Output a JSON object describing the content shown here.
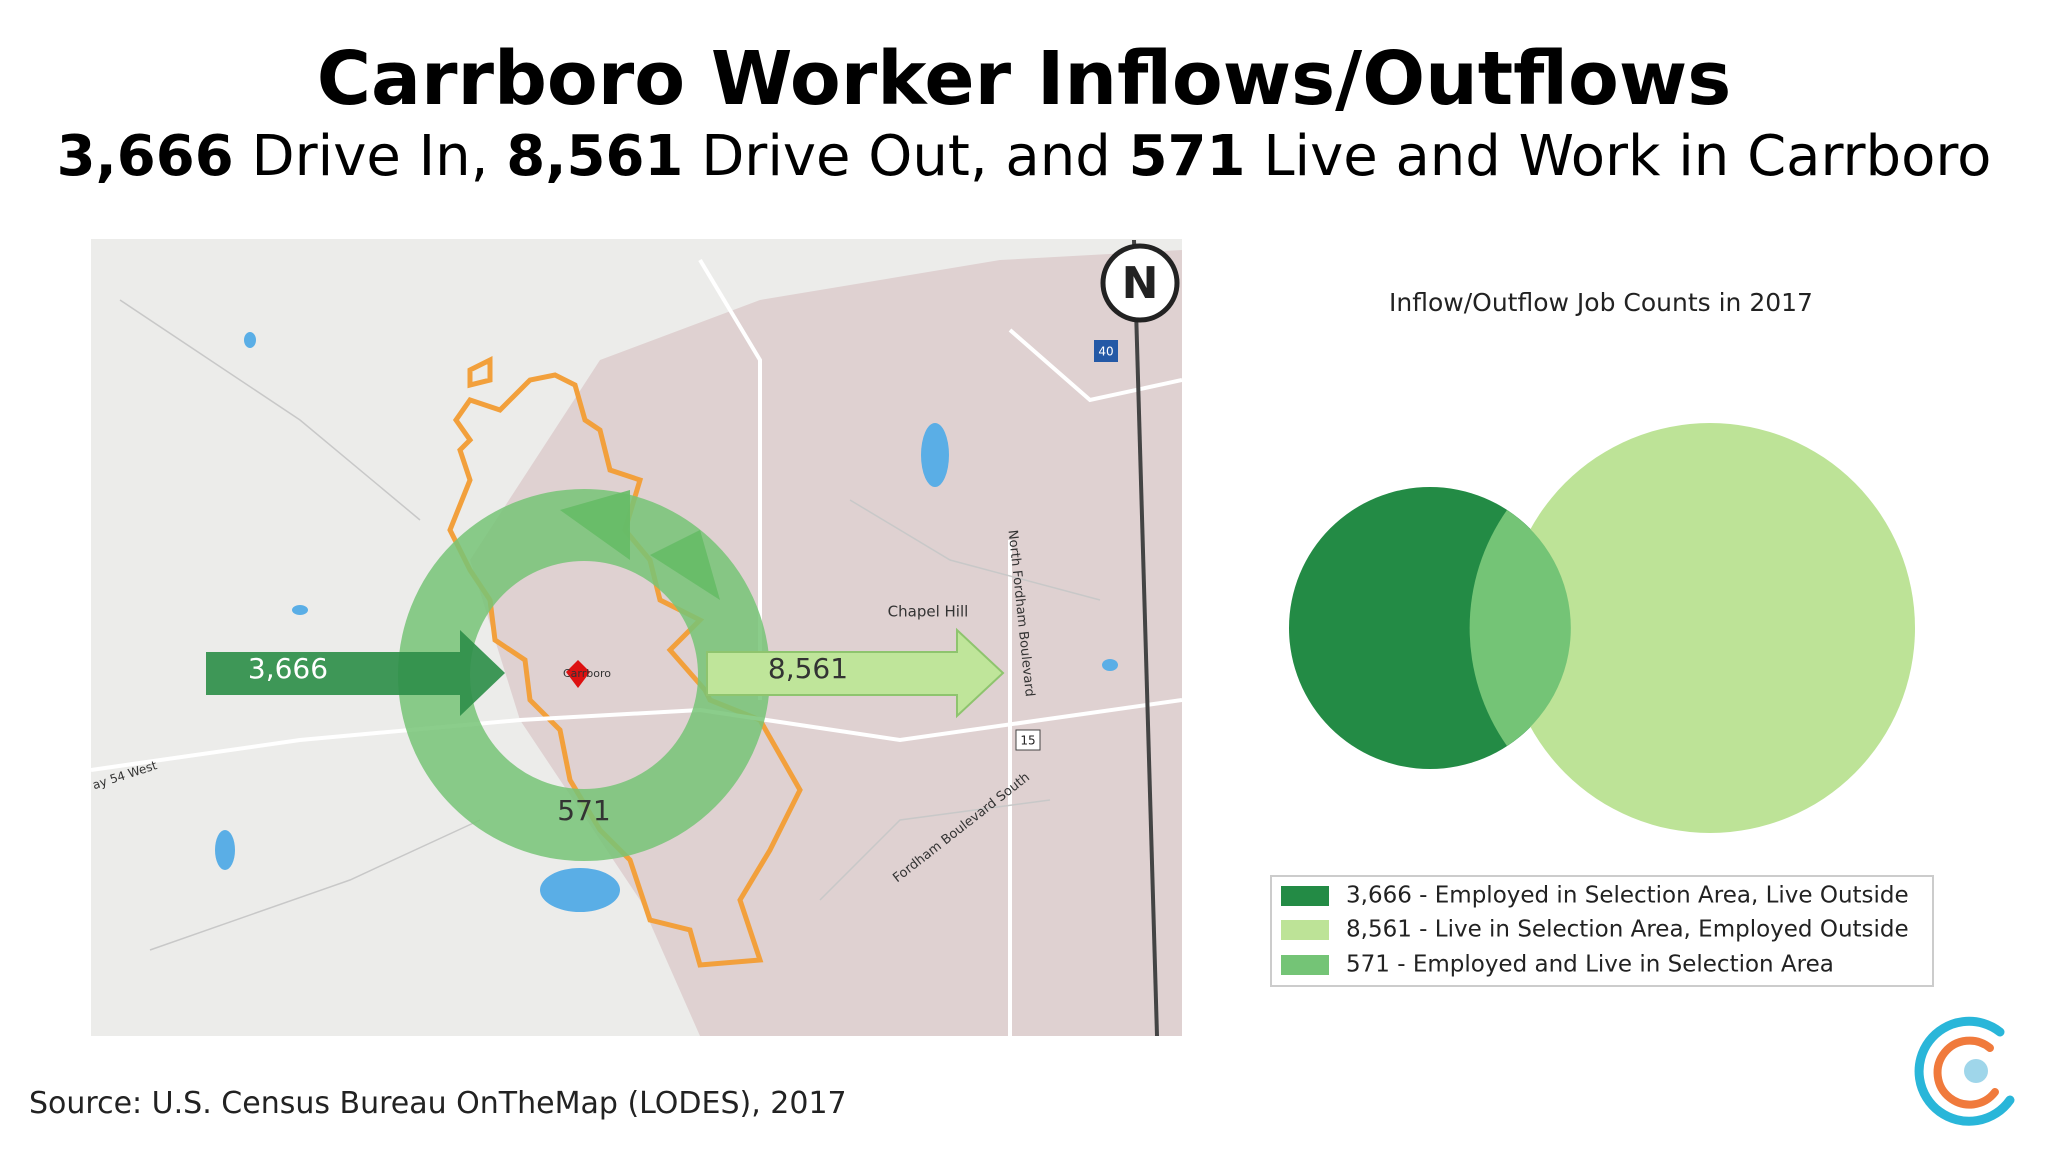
{
  "header": {
    "title": "Carrboro Worker Inflows/Outflows",
    "subtitle": [
      "3,666",
      "Drive In,",
      "8,561",
      "Drive Out, and",
      "571",
      "Live and Work in Carrboro"
    ]
  },
  "map": {
    "inflow": "3,666",
    "outflow": "8,561",
    "both": "571",
    "place": "Chapel Hill",
    "town": "Carrboro",
    "road_1": "North Fordham Boulevard",
    "road_2": "Fordham Boulevard South",
    "road_3": "ay 54 West",
    "north": "N",
    "shield_1": "40",
    "shield_2": "15"
  },
  "venn": {
    "title": "Inflow/Outflow Job Counts in 2017",
    "legend": [
      "3,666 - Employed in Selection Area, Live Outside",
      "8,561 - Live in Selection Area, Employed Outside",
      "571 - Employed and Live in Selection Area"
    ]
  },
  "footer": {
    "source": "Source: U.S. Census Bureau OnTheMap (LODES), 2017"
  }
}
